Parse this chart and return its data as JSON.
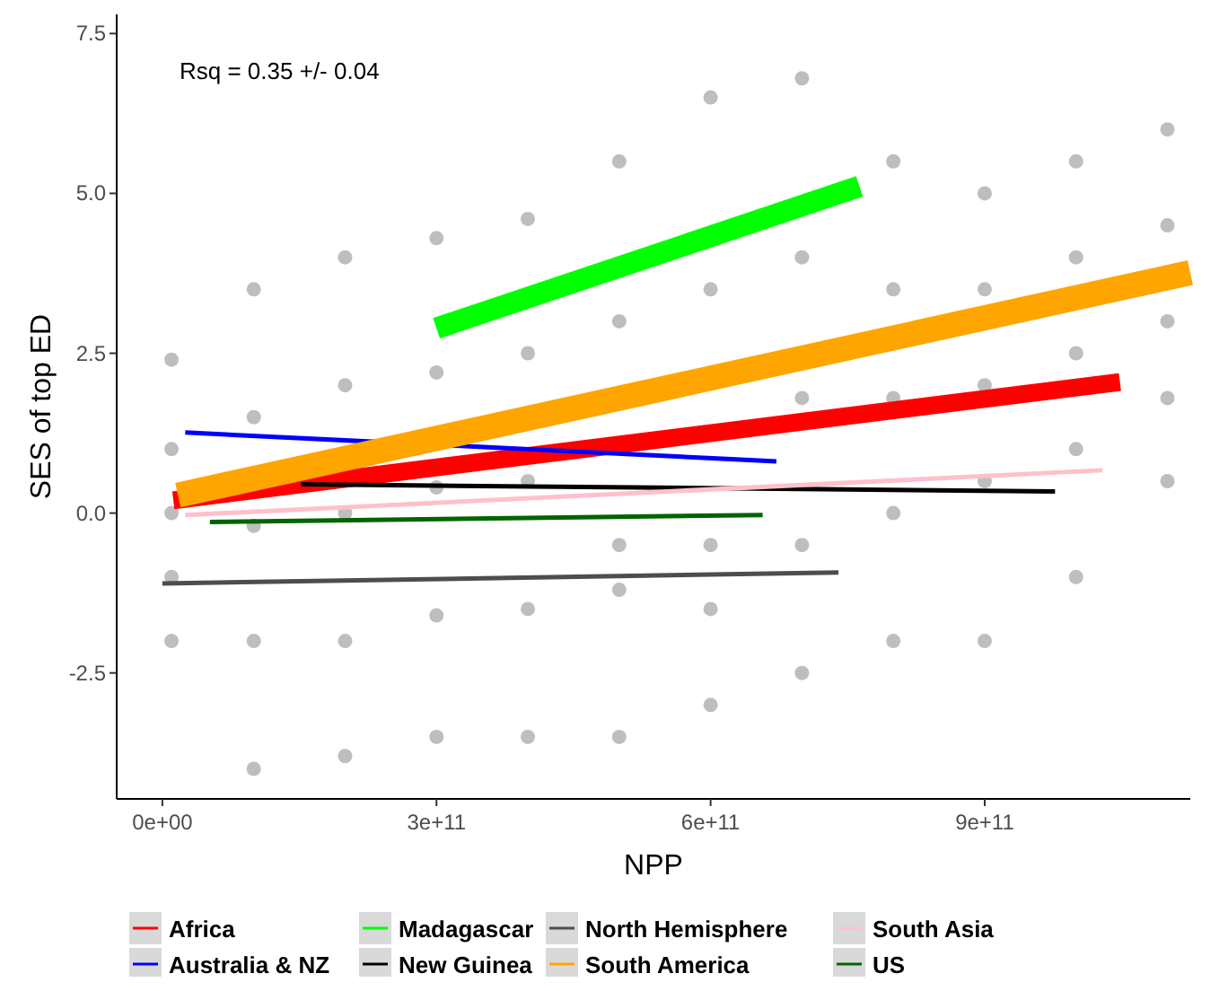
{
  "chart_data": {
    "type": "line",
    "xlabel": "NPP",
    "ylabel": "SES of top ED",
    "annotations": [
      "Rsq = 0.35 +/- 0.04"
    ],
    "xlim": [
      -50000000000.0,
      1125000000000.0
    ],
    "ylim": [
      -4.47,
      7.8
    ],
    "xticks": [
      {
        "value": 0,
        "label": "0e+00"
      },
      {
        "value": 300000000000.0,
        "label": "3e+11"
      },
      {
        "value": 600000000000.0,
        "label": "6e+11"
      },
      {
        "value": 900000000000.0,
        "label": "9e+11"
      }
    ],
    "yticks": [
      {
        "value": -2.5,
        "label": "-2.5"
      },
      {
        "value": 0,
        "label": "0.0"
      },
      {
        "value": 2.5,
        "label": "2.5"
      },
      {
        "value": 5,
        "label": "5.0"
      },
      {
        "value": 7.5,
        "label": "7.5"
      }
    ],
    "grid": false,
    "legend": "bottom",
    "series": [
      {
        "type": "scatter",
        "color": "#bebebe",
        "marker": "circle",
        "x": [
          10000000000.0,
          10000000000.0,
          10000000000.0,
          10000000000.0,
          10000000000.0,
          100000000000.0,
          100000000000.0,
          100000000000.0,
          100000000000.0,
          100000000000.0,
          200000000000.0,
          200000000000.0,
          200000000000.0,
          200000000000.0,
          200000000000.0,
          300000000000.0,
          300000000000.0,
          300000000000.0,
          300000000000.0,
          300000000000.0,
          400000000000.0,
          400000000000.0,
          400000000000.0,
          400000000000.0,
          400000000000.0,
          500000000000.0,
          500000000000.0,
          500000000000.0,
          500000000000.0,
          500000000000.0,
          600000000000.0,
          600000000000.0,
          600000000000.0,
          600000000000.0,
          600000000000.0,
          700000000000.0,
          700000000000.0,
          700000000000.0,
          700000000000.0,
          700000000000.0,
          800000000000.0,
          800000000000.0,
          800000000000.0,
          800000000000.0,
          800000000000.0,
          900000000000.0,
          900000000000.0,
          900000000000.0,
          900000000000.0,
          900000000000.0,
          1000000000000.0,
          1000000000000.0,
          1000000000000.0,
          1000000000000.0,
          1000000000000.0,
          1100000000000.0,
          1100000000000.0,
          1100000000000.0,
          1100000000000.0,
          1100000000000.0
        ],
        "values": [
          2.4,
          1,
          0,
          -1,
          -2,
          3.5,
          1.5,
          -0.2,
          -2,
          -4,
          4,
          2,
          0,
          -2,
          -3.8,
          4.3,
          2.2,
          0.4,
          -1.6,
          -3.5,
          4.6,
          2.5,
          0.5,
          -1.5,
          -3.5,
          5.5,
          3,
          -0.5,
          -1.2,
          -3.5,
          6.5,
          3.5,
          -0.5,
          -1.5,
          -3,
          6.8,
          4,
          1.8,
          -0.5,
          -2.5,
          5.5,
          3.5,
          1.8,
          0,
          -2,
          5,
          3.5,
          2,
          0.5,
          -2,
          5.5,
          4,
          2.5,
          1,
          -1,
          6,
          4.5,
          3,
          1.8,
          0.5
        ]
      },
      {
        "name": "Africa",
        "color": "#ff0000",
        "x": [
          12000000000.0,
          1048000000000.0
        ],
        "values": [
          0.2,
          2.05
        ]
      },
      {
        "name": "Australia & NZ",
        "color": "#0000ff",
        "x": [
          25000000000.0,
          672000000000.0
        ],
        "values": [
          1.26,
          0.81
        ]
      },
      {
        "name": "Madagascar",
        "color": "#00ff00",
        "x": [
          300000000000.0,
          763000000000.0
        ],
        "values": [
          2.89,
          5.11
        ]
      },
      {
        "name": "New Guinea",
        "color": "#000000",
        "x": [
          152000000000.0,
          977000000000.0
        ],
        "values": [
          0.45,
          0.34
        ]
      },
      {
        "name": "North Hemisphere",
        "color": "#4d4d4d",
        "x": [
          0,
          740000000000.0
        ],
        "values": [
          -1.1,
          -0.93
        ]
      },
      {
        "name": "South America",
        "color": "#ffa500",
        "x": [
          17000000000.0,
          1125000000000.0
        ],
        "values": [
          0.28,
          3.76
        ]
      },
      {
        "name": "South Asia",
        "color": "#ffc0cb",
        "x": [
          25000000000.0,
          1029000000000.0
        ],
        "values": [
          -0.03,
          0.67
        ]
      },
      {
        "name": "US",
        "color": "#006400",
        "x": [
          52000000000.0,
          657000000000.0
        ],
        "values": [
          -0.14,
          -0.03
        ]
      }
    ]
  }
}
